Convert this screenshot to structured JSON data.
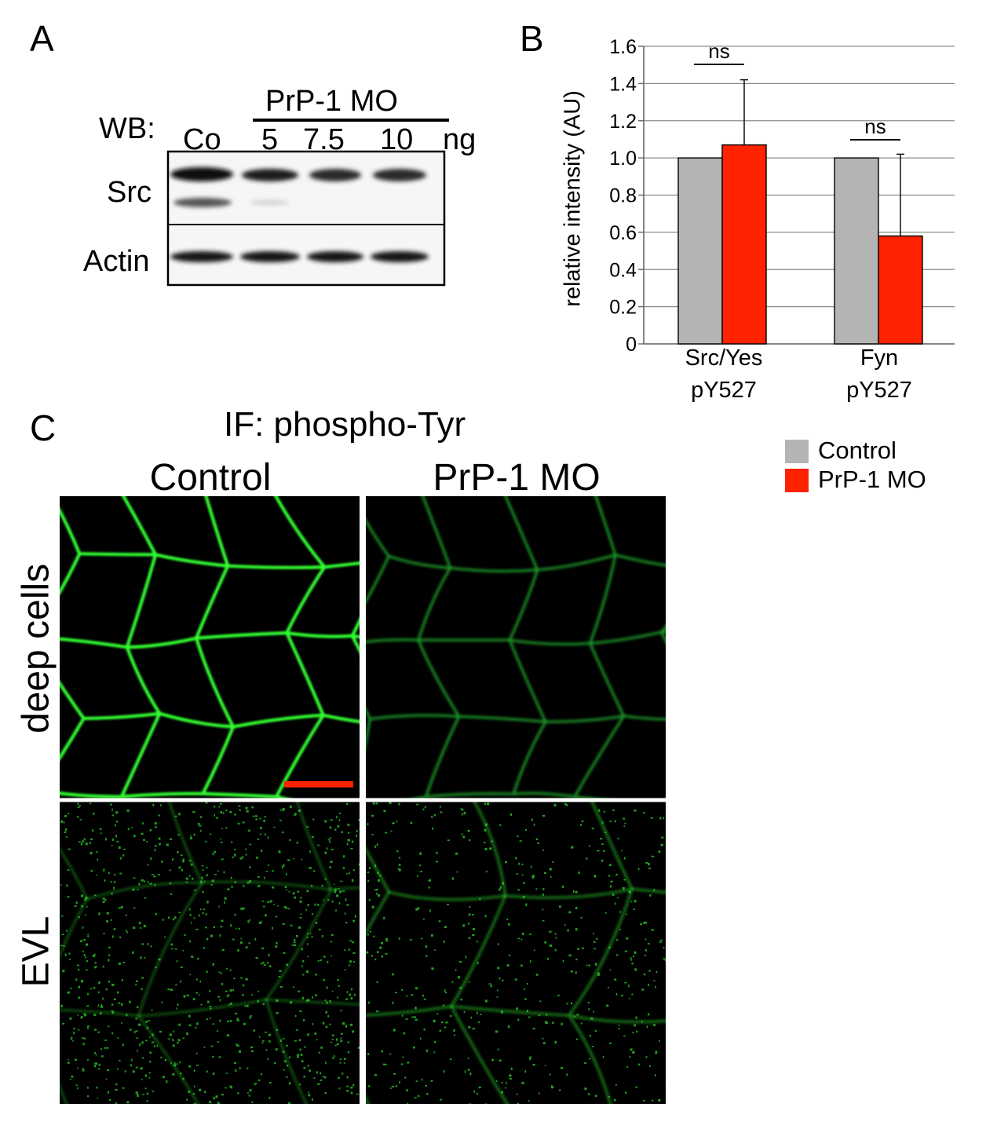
{
  "panels": {
    "a": {
      "letter": "A",
      "wb_prefix": "WB:",
      "group_label": "PrP-1 MO",
      "lanes": [
        "Co",
        "5",
        "7.5",
        "10"
      ],
      "unit": "ng",
      "rows": [
        "Src",
        "Actin"
      ]
    },
    "b": {
      "letter": "B"
    },
    "c": {
      "letter": "C",
      "title": "IF: phospho-Tyr",
      "columns": [
        "Control",
        "PrP-1 MO"
      ],
      "rows": [
        "deep cells",
        "EVL"
      ],
      "scale_bar_color": "#ff2200"
    }
  },
  "legend": [
    {
      "label": "Control",
      "color": "#b4b4b4"
    },
    {
      "label": "PrP-1 MO",
      "color": "#ff2200"
    }
  ],
  "chart_data": {
    "type": "bar",
    "ylabel": "relative intensity (AU)",
    "ylim": [
      0,
      1.6
    ],
    "yticks": [
      "0",
      "0.2",
      "0.4",
      "0.6",
      "0.8",
      "1.0",
      "1.2",
      "1.4",
      "1.6"
    ],
    "categories": [
      "Src/Yes\npY527",
      "Fyn\npY527"
    ],
    "category_lines": [
      [
        "Src/Yes",
        "pY527"
      ],
      [
        "Fyn",
        "pY527"
      ]
    ],
    "series": [
      {
        "name": "Control",
        "values": [
          1.0,
          1.0
        ],
        "color": "#b4b4b4"
      },
      {
        "name": "PrP-1 MO",
        "values": [
          1.07,
          0.58
        ],
        "errors": [
          0.35,
          0.44
        ],
        "color": "#ff2200"
      }
    ],
    "annotations": [
      "ns",
      "ns"
    ],
    "grid": true
  }
}
